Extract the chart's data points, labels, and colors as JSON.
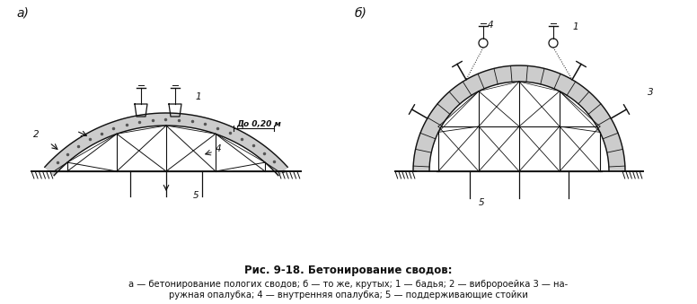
{
  "title_line1": "Рис. 9-18. Бетонирование сводов:",
  "title_line2": "а — бетонирование пологих сводов; б — то же, крутых; 1 — бадья; 2 — вибророейка 3 — на-",
  "title_line3": "ружная опалубка; 4 — внутренняя опалубка; 5 — поддерживающие стойки",
  "label_a": "а)",
  "label_b": "б)",
  "bg_color": "#ffffff",
  "lc": "#111111"
}
